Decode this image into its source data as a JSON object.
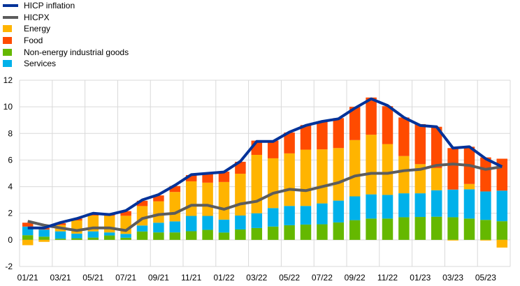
{
  "chart_data": {
    "type": "bar",
    "stacked": true,
    "title": "",
    "xlabel": "",
    "ylabel": "",
    "ylim": [
      -2,
      12
    ],
    "yticks": [
      "-2",
      "0",
      "2",
      "4",
      "6",
      "8",
      "10",
      "12"
    ],
    "grid": true,
    "legend_placement": "top-left",
    "categories": [
      "01/21",
      "02/21",
      "03/21",
      "04/21",
      "05/21",
      "06/21",
      "07/21",
      "08/21",
      "09/21",
      "10/21",
      "11/21",
      "12/21",
      "01/22",
      "02/22",
      "03/22",
      "04/22",
      "05/22",
      "06/22",
      "07/22",
      "08/22",
      "09/22",
      "10/22",
      "11/22",
      "12/22",
      "01/23",
      "02/23",
      "03/23",
      "04/23",
      "05/23",
      "06/23"
    ],
    "xtick_labels": [
      "01/21",
      "03/21",
      "05/21",
      "07/21",
      "09/21",
      "11/21",
      "01/22",
      "03/22",
      "05/22",
      "07/22",
      "09/22",
      "11/22",
      "01/23",
      "03/23",
      "05/23"
    ],
    "series": [
      {
        "name": "Non-energy industrial goods",
        "kind": "bar",
        "color": "#65b800",
        "values": [
          0.35,
          0.24,
          0.09,
          0.12,
          0.17,
          0.33,
          0.16,
          0.63,
          0.56,
          0.56,
          0.65,
          0.75,
          0.55,
          0.78,
          0.89,
          1.0,
          1.1,
          1.15,
          1.17,
          1.31,
          1.48,
          1.6,
          1.6,
          1.7,
          1.72,
          1.74,
          1.7,
          1.6,
          1.5,
          1.4
        ]
      },
      {
        "name": "Services",
        "kind": "bar",
        "color": "#00b1ea",
        "values": [
          0.65,
          0.53,
          0.55,
          0.35,
          0.47,
          0.23,
          0.29,
          0.45,
          0.73,
          0.83,
          1.15,
          1.05,
          0.97,
          1.05,
          1.11,
          1.39,
          1.45,
          1.4,
          1.57,
          1.64,
          1.79,
          1.82,
          1.78,
          1.8,
          1.78,
          1.99,
          2.08,
          2.2,
          2.14,
          2.3
        ]
      },
      {
        "name": "Energy",
        "kind": "bar",
        "color": "#ffb400",
        "values": [
          -0.4,
          -0.15,
          0.47,
          0.99,
          1.19,
          1.25,
          1.36,
          1.46,
          1.61,
          2.21,
          2.6,
          2.5,
          2.83,
          3.14,
          4.39,
          3.74,
          3.95,
          4.23,
          4.06,
          3.95,
          4.23,
          4.48,
          3.82,
          2.8,
          2.19,
          1.67,
          -0.05,
          0.4,
          -0.05,
          -0.58
        ]
      },
      {
        "name": "Food",
        "kind": "bar",
        "color": "#ff4b00",
        "values": [
          0.29,
          0.13,
          0.14,
          0.14,
          0.12,
          0.09,
          0.35,
          0.4,
          0.44,
          0.45,
          0.47,
          0.66,
          0.78,
          0.9,
          1.07,
          1.33,
          1.57,
          1.85,
          2.06,
          2.25,
          2.5,
          2.8,
          2.85,
          2.9,
          3.01,
          3.1,
          3.12,
          2.8,
          2.56,
          2.4
        ]
      },
      {
        "name": "HICP inflation",
        "kind": "line",
        "color": "#003299",
        "values": [
          0.9,
          0.9,
          1.3,
          1.6,
          2.0,
          1.9,
          2.2,
          3.0,
          3.4,
          4.1,
          4.9,
          5.0,
          5.1,
          5.9,
          7.4,
          7.4,
          8.1,
          8.6,
          8.9,
          9.1,
          9.9,
          10.6,
          10.1,
          9.2,
          8.6,
          8.5,
          6.9,
          7.0,
          6.1,
          5.5
        ]
      },
      {
        "name": "HICPX",
        "kind": "line",
        "color": "#5c5c5c",
        "values": [
          1.4,
          1.1,
          0.9,
          0.7,
          0.9,
          0.9,
          0.7,
          1.6,
          1.9,
          2.0,
          2.6,
          2.6,
          2.3,
          2.7,
          2.9,
          3.5,
          3.8,
          3.7,
          4.0,
          4.3,
          4.8,
          5.0,
          5.0,
          5.2,
          5.3,
          5.6,
          5.7,
          5.6,
          5.3,
          5.5
        ]
      }
    ],
    "legend": [
      "HICP inflation",
      "HICPX",
      "Energy",
      "Food",
      "Non-energy industrial goods",
      "Services"
    ]
  }
}
